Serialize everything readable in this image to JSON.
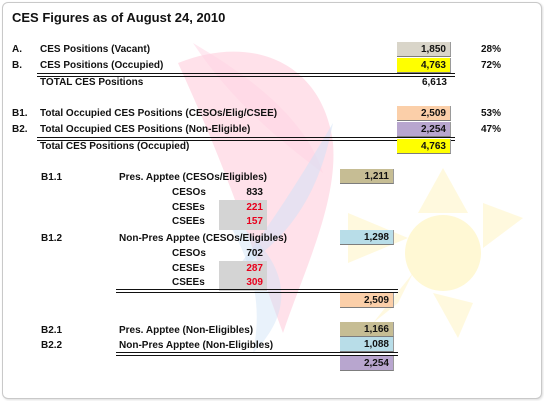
{
  "title": "CES Figures as of August 24, 2010",
  "colors": {
    "grey_box": "#d9d5c9",
    "yellow_box": "#ffff00",
    "peach_box": "#fbcfa9",
    "purple_box": "#b8a6cf",
    "khaki_box": "#c6bd94",
    "lightblue_box": "#b8dde8",
    "red_text": "#e8001c"
  },
  "rows": {
    "a": {
      "code": "A.",
      "label": "CES Positions (Vacant)",
      "value": "1,850",
      "pct": "28%"
    },
    "b": {
      "code": "B.",
      "label": "CES Positions (Occupied)",
      "value": "4,763",
      "pct": "72%"
    },
    "total1": {
      "label": "TOTAL CES Positions",
      "value": "6,613"
    },
    "b1": {
      "code": "B1.",
      "label": "Total Occupied CES Positions (CESOs/Elig/CSEE)",
      "value": "2,509",
      "pct": "53%"
    },
    "b2": {
      "code": "B2.",
      "label": "Total Occupied CES Positions (Non-Eligible)",
      "value": "2,254",
      "pct": "47%"
    },
    "total2": {
      "label": "Total CES Positions (Occupied)",
      "value": "4,763"
    }
  },
  "b11": {
    "code": "B1.1",
    "label": "Pres. Apptee (CESOs/Eligibles)",
    "value": "1,211",
    "items": [
      {
        "label": "CESOs",
        "value": "833"
      },
      {
        "label": "CESEs",
        "value": "221"
      },
      {
        "label": "CSEEs",
        "value": "157"
      }
    ]
  },
  "b12": {
    "code": "B1.2",
    "label": "Non-Pres Apptee (CESOs/Eligibles)",
    "value": "1,298",
    "items": [
      {
        "label": "CESOs",
        "value": "702"
      },
      {
        "label": "CESEs",
        "value": "287"
      },
      {
        "label": "CSEEs",
        "value": "309"
      }
    ],
    "subtotal": "2,509"
  },
  "b21": {
    "code": "B2.1",
    "label": "Pres. Apptee (Non-Eligibles)",
    "value": "1,166"
  },
  "b22": {
    "code": "B2.2",
    "label": "Non-Pres Apptee (Non-Eligibles)",
    "value": "1,088"
  },
  "b2_total": "2,254"
}
